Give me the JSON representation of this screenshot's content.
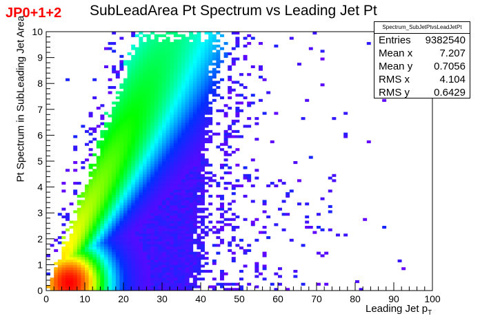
{
  "tag": "JP0+1+2",
  "chart_data": {
    "type": "heatmap",
    "title": "SubLeadArea Pt Spectrum vs Leading Jet Pt",
    "xlabel": "Leading Jet p",
    "xlabel_sub": "T",
    "ylabel": "Pt Spectrum in SubLeading Jet Area",
    "xlim": [
      0,
      100
    ],
    "ylim": [
      0,
      10
    ],
    "x_ticks": [
      0,
      10,
      20,
      30,
      40,
      50,
      60,
      70,
      80,
      90,
      100
    ],
    "y_ticks": [
      0,
      1,
      2,
      3,
      4,
      5,
      6,
      7,
      8,
      9,
      10
    ],
    "colors": {
      "low": "#6a00ff",
      "mid_low": "#0030ff",
      "mid": "#00ffff",
      "mid_high": "#00ff00",
      "high": "#ffff00",
      "peak": "#ff0000"
    },
    "stats": {
      "name": "Spectrum_SubJetPtvsLeadJetPt",
      "rows": [
        {
          "label": "Entries",
          "value": "9382540"
        },
        {
          "label": "Mean x",
          "value": "7.207"
        },
        {
          "label": "Mean y",
          "value": "0.7056"
        },
        {
          "label": "RMS x",
          "value": "4.104"
        },
        {
          "label": "RMS y",
          "value": "0.6429"
        }
      ]
    }
  }
}
